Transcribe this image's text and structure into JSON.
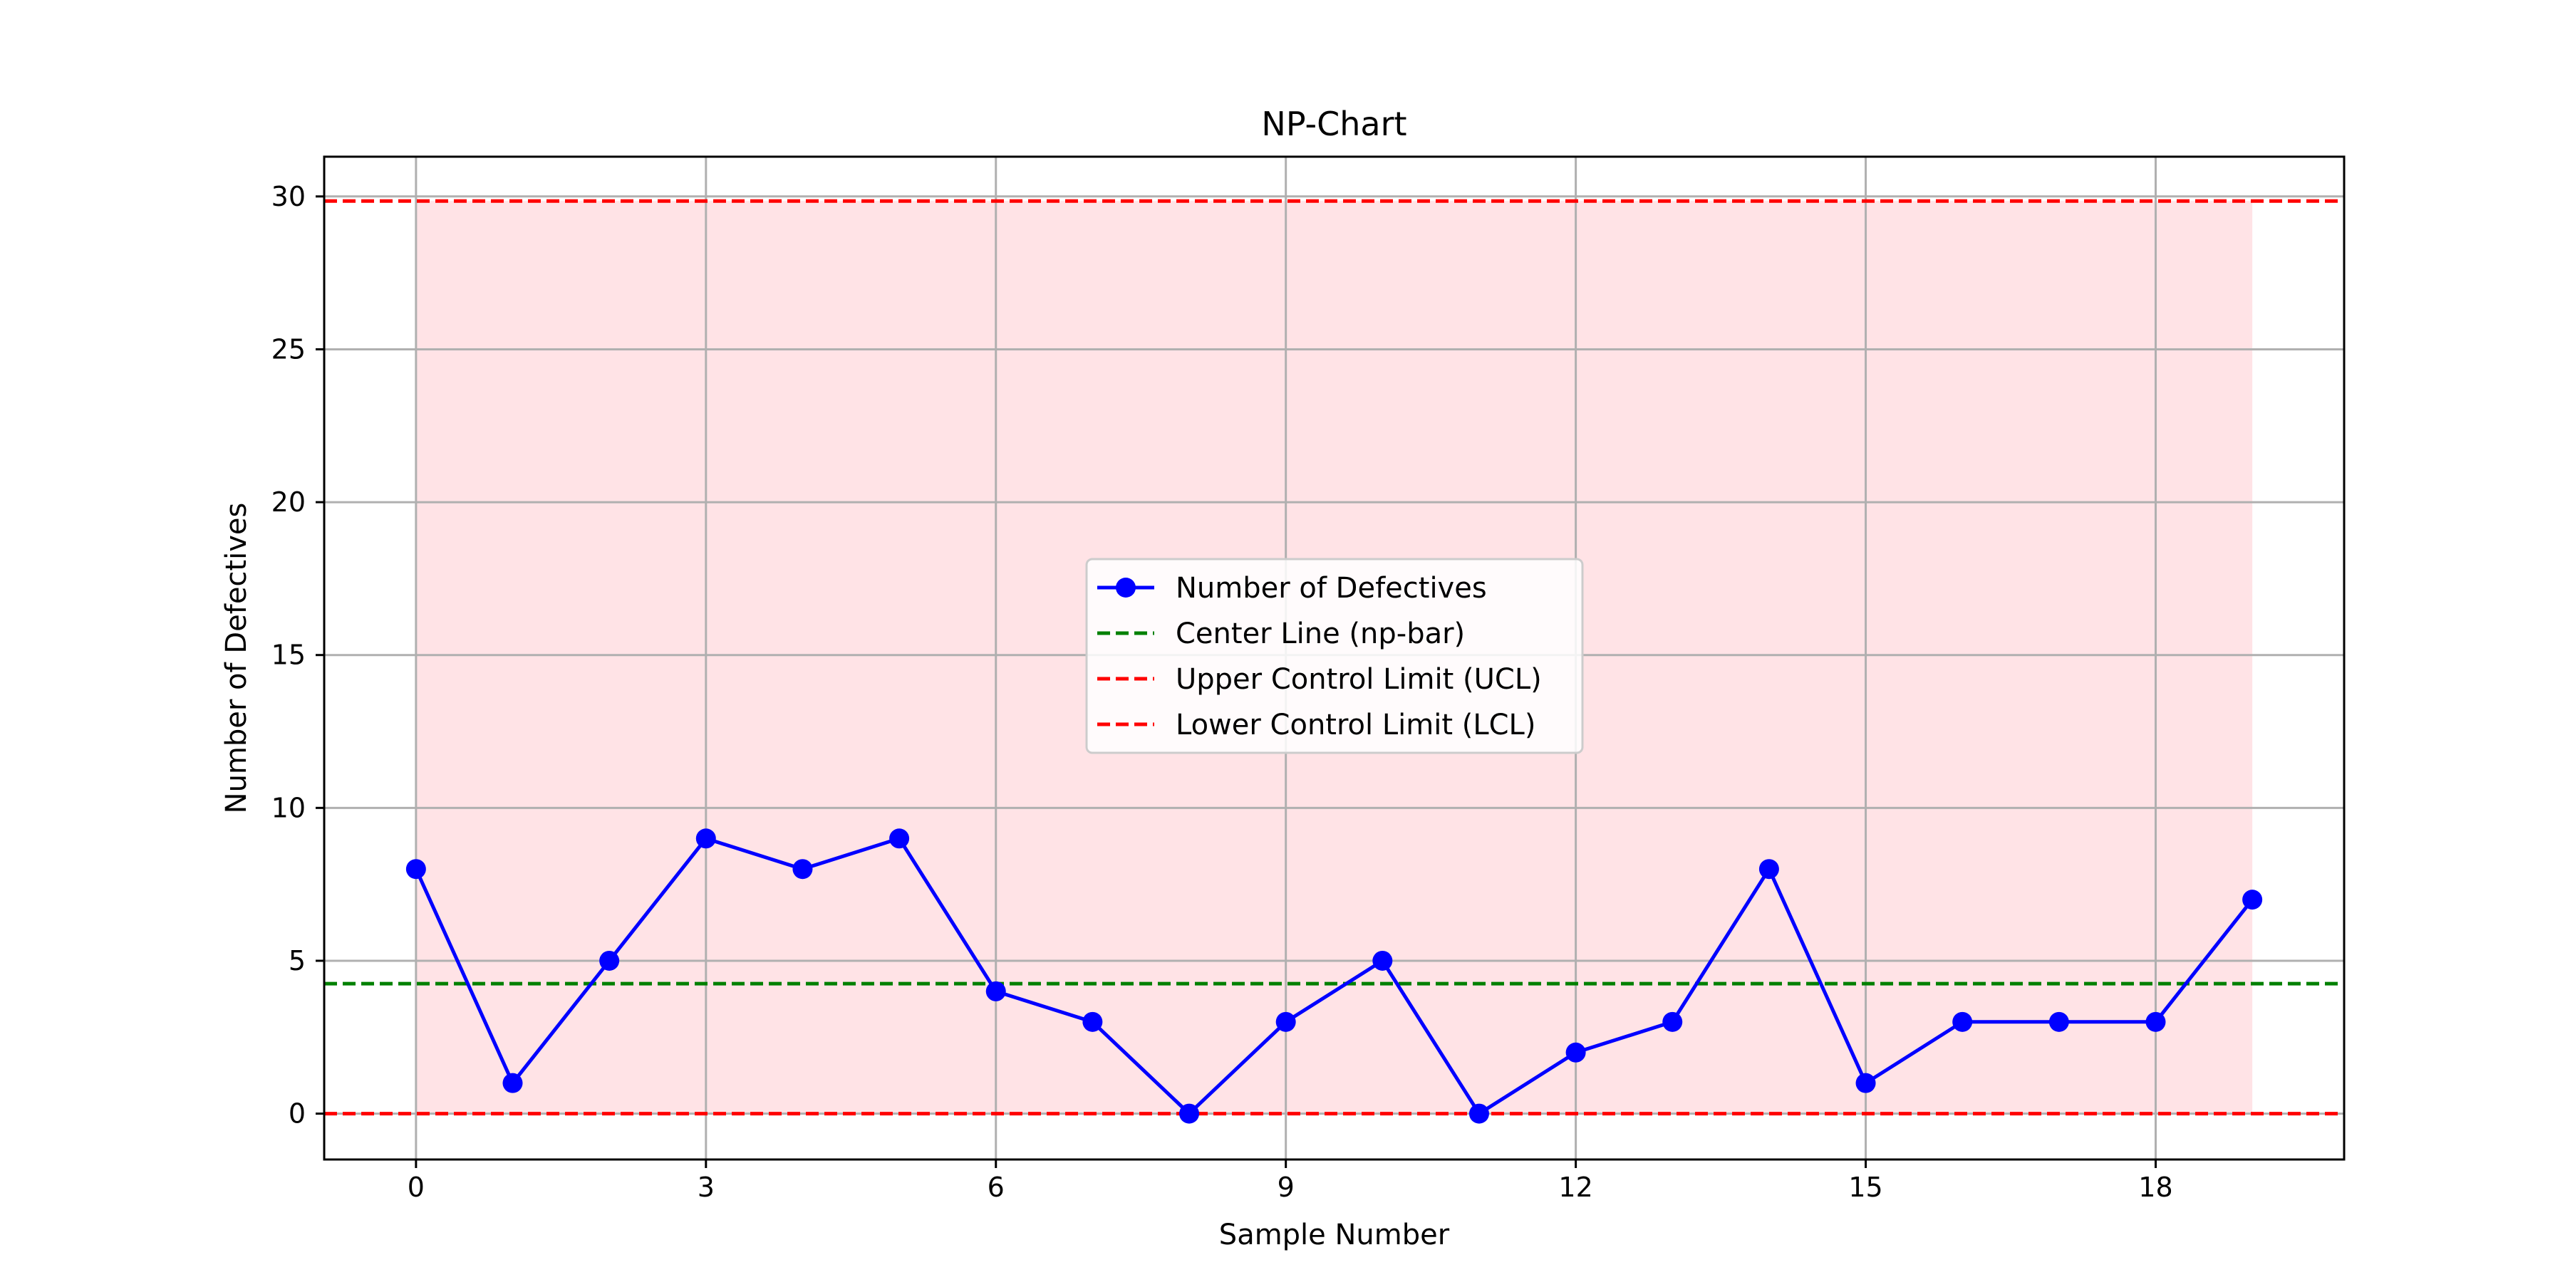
{
  "chart_data": {
    "type": "line",
    "title": "NP-Chart",
    "xlabel": "Sample Number",
    "ylabel": "Number of Defectives",
    "xlim": [
      -0.95,
      19.95
    ],
    "ylim": [
      -1.5,
      31.3
    ],
    "xticks": [
      0,
      3,
      6,
      9,
      12,
      15,
      18
    ],
    "yticks": [
      0,
      5,
      10,
      15,
      20,
      25,
      30
    ],
    "grid": true,
    "legend_position": "center",
    "x": [
      0,
      1,
      2,
      3,
      4,
      5,
      6,
      7,
      8,
      9,
      10,
      11,
      12,
      13,
      14,
      15,
      16,
      17,
      18,
      19
    ],
    "series": [
      {
        "name": "Number of Defectives",
        "values": [
          8,
          1,
          5,
          9,
          8,
          9,
          4,
          3,
          0,
          3,
          5,
          0,
          2,
          3,
          8,
          1,
          3,
          3,
          3,
          7
        ],
        "color": "#0000ff",
        "style": "solid-marker"
      }
    ],
    "lines": [
      {
        "name": "Center Line (np-bar)",
        "value": 4.25,
        "color": "#008000",
        "style": "dashed"
      },
      {
        "name": "Upper Control Limit (UCL)",
        "value": 29.85,
        "color": "#ff0000",
        "style": "dashed"
      },
      {
        "name": "Lower Control Limit (LCL)",
        "value": 0,
        "color": "#ff0000",
        "style": "dashed"
      }
    ],
    "shaded_region": {
      "x_from": 0,
      "x_to": 19,
      "y_from": 0,
      "y_to": 29.85,
      "color": "#ffe3e6"
    },
    "legend": [
      "Number of Defectives",
      "Center Line (np-bar)",
      "Upper Control Limit (UCL)",
      "Lower Control Limit (LCL)"
    ]
  }
}
